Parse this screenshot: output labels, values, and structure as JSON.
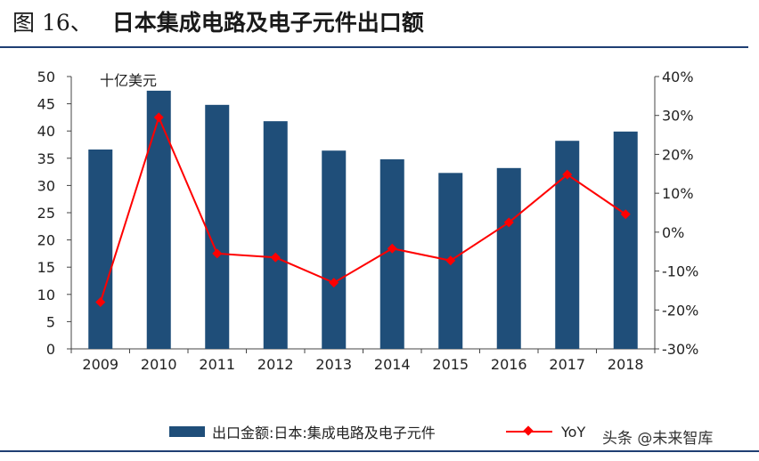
{
  "header": {
    "figure_number": "图 16、",
    "title": "日本集成电路及电子元件出口额"
  },
  "watermark": "头条 @未来智库",
  "colors": {
    "bar": "#1f4e79",
    "line": "#ff0000",
    "rule": "#1f3f73"
  },
  "chart_data": {
    "type": "bar",
    "unit_label": "十亿美元",
    "categories": [
      "2009",
      "2010",
      "2011",
      "2012",
      "2013",
      "2014",
      "2015",
      "2016",
      "2017",
      "2018"
    ],
    "y_left": {
      "min": 0,
      "max": 50,
      "ticks": [
        "0",
        "5",
        "10",
        "15",
        "20",
        "25",
        "30",
        "35",
        "40",
        "45",
        "50"
      ]
    },
    "y_right": {
      "min": -30,
      "max": 40,
      "ticks": [
        "-30%",
        "-20%",
        "-10%",
        "0%",
        "10%",
        "20%",
        "30%",
        "40%"
      ]
    },
    "series": [
      {
        "name": "出口金额:日本:集成电路及电子元件",
        "kind": "bar",
        "axis": "left",
        "values": [
          36.6,
          47.4,
          44.8,
          41.8,
          36.4,
          34.8,
          32.3,
          33.2,
          38.2,
          39.9
        ]
      },
      {
        "name": "YoY",
        "kind": "line",
        "axis": "right",
        "values": [
          -18.0,
          29.5,
          -5.5,
          -6.5,
          -13.0,
          -4.2,
          -7.3,
          2.5,
          14.8,
          4.6
        ]
      }
    ],
    "legend_position": "bottom",
    "grid": false
  }
}
